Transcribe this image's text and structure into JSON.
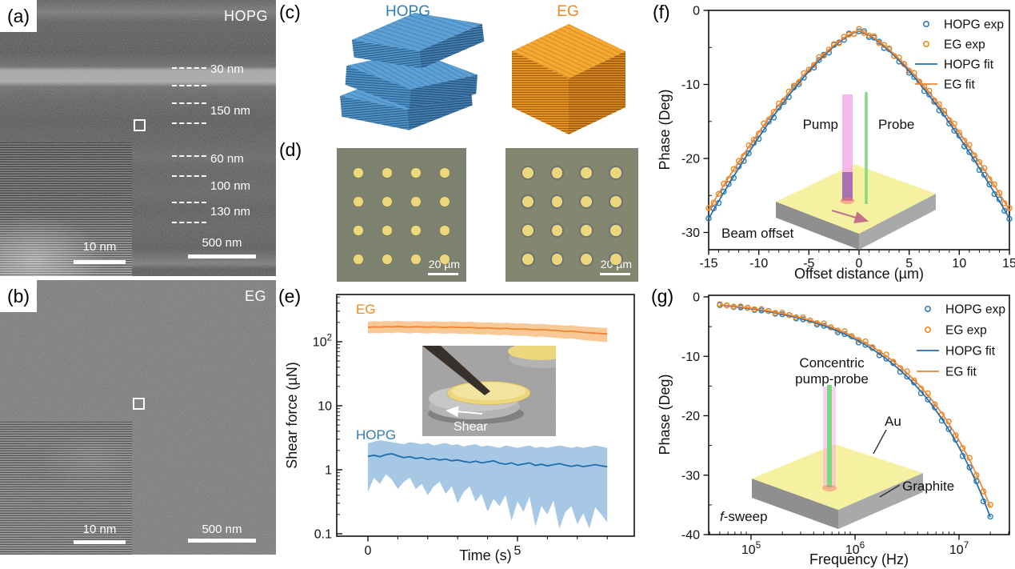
{
  "panels": {
    "a": {
      "label": "(a)",
      "tag": "HOPG",
      "layer_labels": [
        "30 nm",
        "150 nm",
        "60 nm",
        "100 nm",
        "130 nm"
      ],
      "inset_scale_bar": "10 nm",
      "scale_bar": "500 nm"
    },
    "b": {
      "label": "(b)",
      "tag": "EG",
      "inset_scale_bar": "10 nm",
      "scale_bar": "500 nm"
    },
    "c": {
      "label": "(c)",
      "hopg_title": "HOPG",
      "eg_title": "EG"
    },
    "d": {
      "label": "(d)",
      "scale_bar": "20 µm",
      "grid_rows": 4,
      "grid_cols": 4
    },
    "e": {
      "label": "(e)",
      "eg_label": "EG",
      "hopg_label": "HOPG",
      "shear_label": "Shear"
    },
    "f": {
      "label": "(f)",
      "annotation": "Beam offset",
      "pump_label": "Pump",
      "probe_label": "Probe"
    },
    "g": {
      "label": "(g)",
      "annotation_italic": "f",
      "annotation_rest": "-sweep",
      "inset_title1": "Concentric",
      "inset_title2": "pump-probe",
      "au_label": "Au",
      "graphite_label": "Graphite"
    }
  },
  "legend": [
    "HOPG exp",
    "EG exp",
    "HOPG fit",
    "EG fit"
  ],
  "colors": {
    "hopg_blue": "#2e7cb8",
    "hopg_line": "#1f6eb0",
    "hopg_band": "#a6c8e4",
    "eg_orange": "#f0871e",
    "eg_line": "#ef8432",
    "eg_band": "#f9c897",
    "gold_dot": "#ecd77c",
    "micrograph_bg_left": "#7d8170",
    "micrograph_bg_right": "#83876f",
    "slab_yellow": "#f6f1a0",
    "slab_gray_left": "#8f8f8f",
    "slab_gray_right": "#a9a9a9",
    "pump_pink": "#f2a8e8",
    "pump_purple": "#9a5ab4",
    "probe_green": "#7cd880",
    "axis": "#111111"
  },
  "chart_data": [
    {
      "id": "e",
      "type": "line",
      "title": "",
      "x_axis": {
        "label": "Time (s)",
        "min": -1.05,
        "max": 8.9,
        "major_ticks": [
          0,
          5
        ],
        "minor_ticks": [
          1,
          2,
          3,
          4,
          6,
          7,
          8
        ]
      },
      "y_axis": {
        "label": "Shear force (µN)",
        "scale": "log",
        "min": 0.1,
        "max": 540,
        "tick_values": [
          0.1,
          1,
          10,
          100
        ],
        "tick_labels": [
          "0.1",
          "1",
          "10",
          "10^2"
        ]
      },
      "t_start": 0,
      "t_step": 0.2,
      "series": [
        {
          "name": "EG",
          "role": "mean",
          "mean": [
            168,
            171,
            169,
            172,
            170,
            173,
            171,
            169,
            172,
            170,
            168,
            171,
            169,
            167,
            170,
            168,
            166,
            168,
            165,
            163,
            165,
            162,
            160,
            162,
            159,
            157,
            158,
            156,
            153,
            155,
            152,
            150,
            148,
            145,
            147,
            143,
            140,
            138,
            136,
            134,
            133
          ],
          "upper": [
            206,
            210,
            207,
            211,
            208,
            212,
            209,
            207,
            210,
            208,
            205,
            209,
            207,
            204,
            208,
            205,
            203,
            205,
            202,
            199,
            201,
            198,
            196,
            198,
            195,
            192,
            194,
            191,
            188,
            190,
            186,
            184,
            182,
            178,
            181,
            176,
            172,
            170,
            168,
            166,
            164
          ],
          "lower": [
            134,
            137,
            135,
            138,
            136,
            139,
            137,
            135,
            138,
            136,
            134,
            137,
            135,
            133,
            136,
            134,
            132,
            134,
            131,
            129,
            131,
            128,
            126,
            128,
            125,
            123,
            124,
            122,
            119,
            121,
            118,
            116,
            114,
            111,
            113,
            109,
            106,
            104,
            102,
            100,
            99
          ]
        },
        {
          "name": "HOPG",
          "role": "mean",
          "mean": [
            1.62,
            1.68,
            1.6,
            1.72,
            1.78,
            1.65,
            1.55,
            1.6,
            1.5,
            1.55,
            1.45,
            1.5,
            1.42,
            1.47,
            1.38,
            1.42,
            1.35,
            1.3,
            1.36,
            1.28,
            1.33,
            1.38,
            1.27,
            1.22,
            1.28,
            1.18,
            1.23,
            1.28,
            1.17,
            1.22,
            1.15,
            1.2,
            1.25,
            1.18,
            1.13,
            1.18,
            1.12,
            1.16,
            1.2,
            1.15,
            1.12
          ],
          "upper": [
            2.6,
            2.75,
            2.9,
            2.8,
            2.7,
            2.6,
            2.5,
            2.7,
            2.6,
            2.5,
            2.62,
            2.4,
            2.52,
            2.62,
            2.42,
            2.5,
            2.3,
            2.42,
            2.5,
            2.3,
            2.4,
            2.3,
            2.2,
            2.4,
            2.3,
            2.2,
            2.3,
            2.4,
            2.2,
            2.3,
            2.2,
            2.3,
            2.4,
            2.3,
            2.2,
            2.3,
            2.2,
            2.3,
            2.4,
            2.3,
            2.2
          ],
          "lower": [
            0.45,
            0.75,
            0.6,
            0.85,
            0.7,
            0.5,
            0.65,
            0.75,
            0.5,
            0.6,
            0.4,
            0.55,
            0.65,
            0.42,
            0.55,
            0.3,
            0.45,
            0.55,
            0.32,
            0.42,
            0.22,
            0.35,
            0.27,
            0.4,
            0.16,
            0.32,
            0.22,
            0.38,
            0.13,
            0.27,
            0.2,
            0.33,
            0.12,
            0.22,
            0.27,
            0.14,
            0.21,
            0.12,
            0.26,
            0.2,
            0.15
          ]
        }
      ]
    },
    {
      "id": "f",
      "type": "scatter",
      "title": "",
      "x_axis": {
        "label": "Offset distance (µm)",
        "min": -15,
        "max": 15,
        "major_ticks": [
          -15,
          -10,
          -5,
          0,
          5,
          10,
          15
        ],
        "minor_step": 1
      },
      "y_axis": {
        "label": "Phase (Deg)",
        "min": -32.5,
        "max": 0,
        "major_ticks": [
          0,
          -10,
          -20,
          -30
        ],
        "minor_ticks": [
          -5,
          -15,
          -25
        ]
      },
      "x_start": -15,
      "x_step": 0.5,
      "exp_jitter": 0.25,
      "series": [
        {
          "name": "HOPG fit",
          "values": [
            -28.1,
            -26.93,
            -25.77,
            -24.63,
            -23.51,
            -22.4,
            -21.31,
            -20.24,
            -19.19,
            -18.15,
            -17.14,
            -16.15,
            -15.17,
            -14.22,
            -13.29,
            -12.39,
            -11.51,
            -10.65,
            -9.82,
            -9.01,
            -8.23,
            -7.49,
            -6.78,
            -6.1,
            -5.46,
            -4.86,
            -4.31,
            -3.81,
            -3.37,
            -3.02,
            -2.8,
            -3.02,
            -3.37,
            -3.81,
            -4.31,
            -4.86,
            -5.46,
            -6.1,
            -6.78,
            -7.49,
            -8.23,
            -9.01,
            -9.82,
            -10.65,
            -11.51,
            -12.39,
            -13.29,
            -14.22,
            -15.17,
            -16.15,
            -17.14,
            -18.15,
            -19.19,
            -20.24,
            -21.31,
            -22.4,
            -23.51,
            -24.63,
            -25.77,
            -26.93,
            -28.1
          ]
        },
        {
          "name": "EG fit",
          "values": [
            -26.95,
            -25.83,
            -24.72,
            -23.63,
            -22.56,
            -21.5,
            -20.46,
            -19.43,
            -18.43,
            -17.43,
            -16.47,
            -15.52,
            -14.58,
            -13.67,
            -12.78,
            -11.92,
            -11.08,
            -10.26,
            -9.47,
            -8.69,
            -7.94,
            -7.24,
            -6.56,
            -5.91,
            -5.29,
            -4.72,
            -4.19,
            -3.72,
            -3.3,
            -2.96,
            -2.75,
            -2.96,
            -3.3,
            -3.72,
            -4.19,
            -4.72,
            -5.29,
            -5.91,
            -6.56,
            -7.24,
            -7.94,
            -8.69,
            -9.47,
            -10.26,
            -11.08,
            -11.92,
            -12.78,
            -13.67,
            -14.58,
            -15.52,
            -16.47,
            -17.43,
            -18.43,
            -19.43,
            -20.46,
            -21.5,
            -22.56,
            -23.63,
            -24.72,
            -25.83,
            -26.95
          ]
        }
      ]
    },
    {
      "id": "g",
      "type": "scatter",
      "title": "",
      "x_axis": {
        "label": "Frequency (Hz)",
        "scale": "log",
        "tick_values": [
          100000,
          1000000,
          10000000
        ],
        "tick_labels": [
          "10^5",
          "10^6",
          "10^7"
        ]
      },
      "y_axis": {
        "label": "Phase (Deg)",
        "min": -40,
        "max": 0,
        "major_ticks": [
          0,
          -10,
          -20,
          -30,
          -40
        ],
        "minor_ticks": [
          -5,
          -15,
          -25,
          -35
        ]
      },
      "log_start": 4.7,
      "log_step": 0.0667,
      "n_points": 40,
      "exp_jitter": 0.3,
      "series": [
        {
          "name": "HOPG fit",
          "values": [
            -1.37,
            -1.49,
            -1.62,
            -1.77,
            -1.92,
            -2.09,
            -2.28,
            -2.48,
            -2.7,
            -2.94,
            -3.19,
            -3.48,
            -3.78,
            -4.12,
            -4.48,
            -4.87,
            -5.3,
            -5.77,
            -6.28,
            -6.84,
            -7.44,
            -8.09,
            -8.81,
            -9.59,
            -10.43,
            -11.35,
            -12.35,
            -13.44,
            -14.63,
            -15.92,
            -17.32,
            -18.85,
            -20.51,
            -22.32,
            -24.29,
            -26.43,
            -28.76,
            -31.3,
            -34.06,
            -37.06
          ]
        },
        {
          "name": "EG fit",
          "values": [
            -1.31,
            -1.42,
            -1.55,
            -1.69,
            -1.83,
            -1.99,
            -2.18,
            -2.37,
            -2.58,
            -2.8,
            -3.04,
            -3.32,
            -3.61,
            -3.93,
            -4.27,
            -4.65,
            -5.06,
            -5.5,
            -5.99,
            -6.53,
            -7.1,
            -7.72,
            -8.4,
            -9.15,
            -9.95,
            -10.83,
            -11.78,
            -12.82,
            -13.96,
            -15.19,
            -16.52,
            -17.98,
            -19.57,
            -21.29,
            -23.17,
            -25.21,
            -27.44,
            -29.86,
            -32.49,
            -35.36
          ]
        }
      ]
    }
  ]
}
